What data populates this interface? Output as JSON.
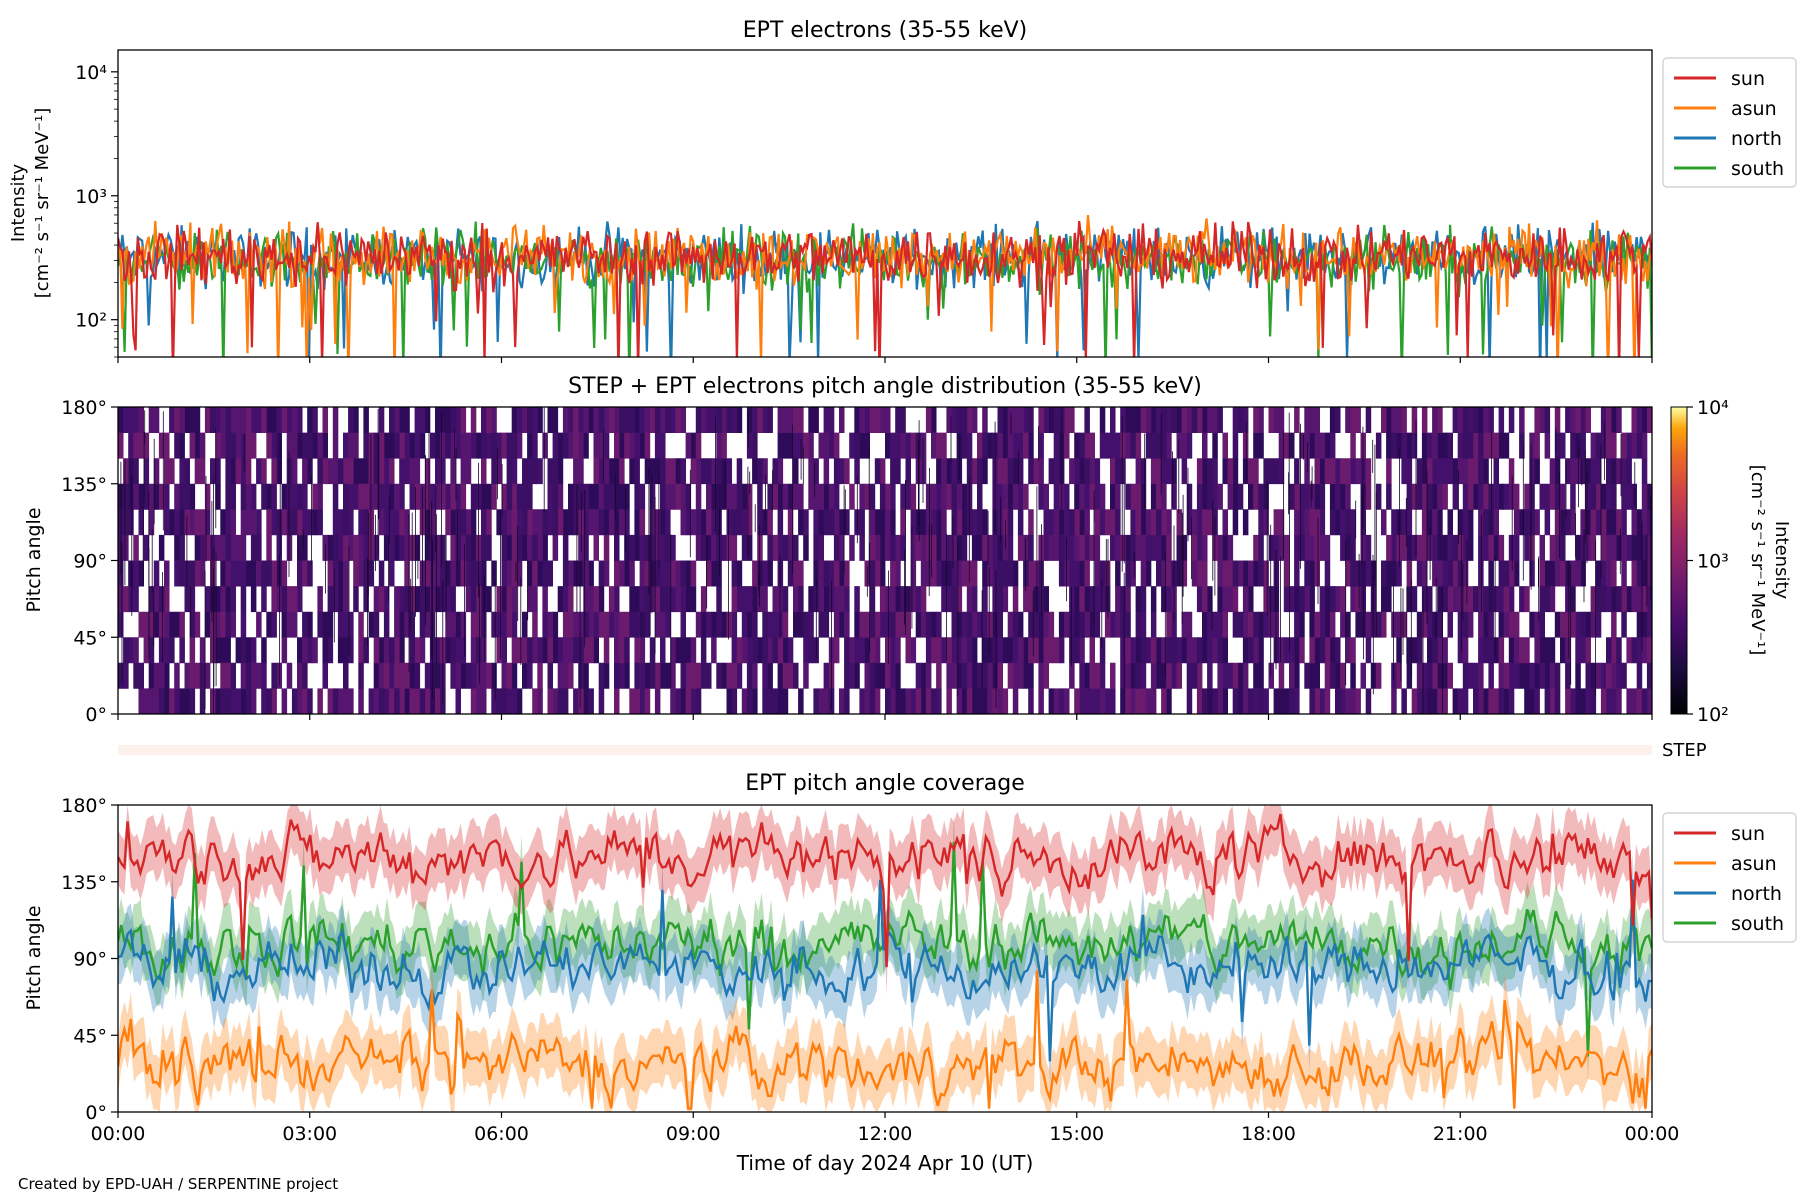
{
  "footer": "Created by EPD-UAH / SERPENTINE project",
  "colors": {
    "sun": "#d62728",
    "asun": "#ff7f0e",
    "north": "#1f77b4",
    "south": "#2ca02c",
    "heat": "#5b1a6e",
    "step_bar": "#fdf1ec"
  },
  "chart_data": [
    {
      "type": "line",
      "title": "EPT electrons (35-55 keV)",
      "ylabel_line1": "Intensity",
      "ylabel_line2": "[cm⁻² s⁻¹ sr⁻¹ MeV⁻¹]",
      "yscale": "log",
      "ylim": [
        50,
        15000
      ],
      "yticks": [
        {
          "value": 100,
          "label": "10²"
        },
        {
          "value": 1000,
          "label": "10³"
        },
        {
          "value": 10000,
          "label": "10⁴"
        }
      ],
      "xlim": [
        "2024-04-10T00:00",
        "2024-04-11T00:00"
      ],
      "legend_position": "outside-right",
      "series": [
        {
          "name": "sun",
          "typical_value": 330
        },
        {
          "name": "asun",
          "typical_value": 330
        },
        {
          "name": "north",
          "typical_value": 320
        },
        {
          "name": "south",
          "typical_value": 310
        }
      ]
    },
    {
      "type": "heatmap",
      "title": "STEP + EPT electrons pitch angle distribution (35-55 keV)",
      "ylabel": "Pitch angle",
      "ylim": [
        0,
        180
      ],
      "yticks": [
        "0°",
        "45°",
        "90°",
        "135°",
        "180°"
      ],
      "colorbar": {
        "label_line1": "Intensity",
        "label_line2": "[cm⁻² s⁻¹ sr⁻¹ MeV⁻¹]",
        "scale": "log",
        "range": [
          100,
          10000
        ],
        "tick_labels": [
          "10²",
          "10³",
          "10⁴"
        ],
        "colormap": "inferno"
      },
      "typical_intensity": 300,
      "step_label": "STEP"
    },
    {
      "type": "line",
      "title": "EPT pitch angle coverage",
      "ylabel": "Pitch angle",
      "xlabel": "Time of day 2024 Apr 10 (UT)",
      "ylim": [
        0,
        180
      ],
      "yticks": [
        "0°",
        "45°",
        "90°",
        "135°",
        "180°"
      ],
      "xticks": [
        "00:00",
        "03:00",
        "06:00",
        "09:00",
        "12:00",
        "15:00",
        "18:00",
        "21:00",
        "00:00"
      ],
      "legend_position": "outside-right",
      "band": "shaded range around each series",
      "series": [
        {
          "name": "sun",
          "typical_value": 150
        },
        {
          "name": "asun",
          "typical_value": 28
        },
        {
          "name": "north",
          "typical_value": 85
        },
        {
          "name": "south",
          "typical_value": 100
        }
      ]
    }
  ]
}
